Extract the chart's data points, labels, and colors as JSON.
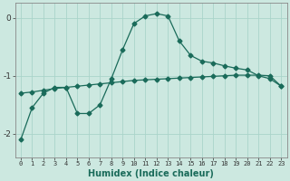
{
  "xlabel": "Humidex (Indice chaleur)",
  "ylabel": "",
  "background_color": "#cce8e0",
  "grid_color": "#aad4ca",
  "line_color": "#1a6b5a",
  "x_values": [
    0,
    1,
    2,
    3,
    4,
    5,
    6,
    7,
    8,
    9,
    10,
    11,
    12,
    13,
    14,
    15,
    16,
    17,
    18,
    19,
    20,
    21,
    22,
    23
  ],
  "line1_y": [
    -2.1,
    -1.55,
    -1.3,
    -1.2,
    -1.2,
    -1.65,
    -1.65,
    -1.5,
    -1.05,
    -0.55,
    -0.1,
    0.03,
    0.07,
    0.03,
    -0.4,
    -0.65,
    -0.75,
    -0.78,
    -0.83,
    -0.87,
    -0.9,
    -1.0,
    -1.05,
    -1.18
  ],
  "line2_y": [
    -1.3,
    -1.28,
    -1.25,
    -1.22,
    -1.2,
    -1.18,
    -1.16,
    -1.14,
    -1.12,
    -1.1,
    -1.08,
    -1.07,
    -1.06,
    -1.05,
    -1.04,
    -1.03,
    -1.02,
    -1.01,
    -1.0,
    -0.99,
    -0.99,
    -0.99,
    -1.0,
    -1.18
  ],
  "ylim": [
    -2.4,
    0.25
  ],
  "yticks": [
    -2,
    -1,
    0
  ],
  "xlim": [
    -0.5,
    23.5
  ],
  "xlabel_color": "#1a6b5a",
  "xlabel_fontsize": 7,
  "tick_fontsize": 5,
  "ytick_fontsize": 6.5,
  "marker_size": 2.5,
  "linewidth": 0.9
}
